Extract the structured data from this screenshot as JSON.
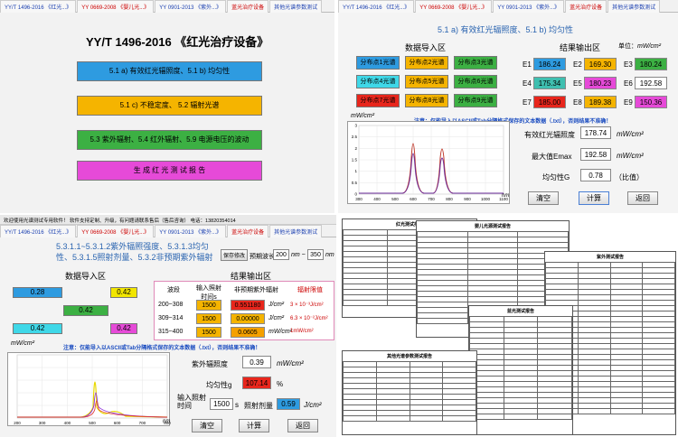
{
  "tabs": [
    "YY/T 1496-2016 《红光...》",
    "YY 0669-2008 《婴儿光...》",
    "YY 0901-2013 《紫外...》",
    "蓝光治疗设备",
    "其他光谱参数测试"
  ],
  "q1": {
    "title": "YY/T 1496-2016 《红光治疗设备》",
    "buttons": [
      "5.1 a) 有效红光辐照度、5.1 b) 均匀性",
      "5.1 c) 不稳定度、  5.2 辐射光谱",
      "5.3 紫外辐射、5.4 红外辐射、5.9 电源电压的波动",
      "生 成 红 光 测 试 报 告"
    ]
  },
  "q2": {
    "subtitle": "5.1 a) 有效红光辐照度、5.1 b) 均匀性",
    "import_title": "数据导入区",
    "output_title": "结果输出区",
    "unit_label": "单位：",
    "unit": "mW/cm²",
    "points": [
      "分布点1光谱",
      "分布点2光谱",
      "分布点3光谱",
      "分布点4光谱",
      "分布点5光谱",
      "分布点6光谱",
      "分布点7光谱",
      "分布点8光谱",
      "分布点9光谱"
    ],
    "e_labels": [
      "E1",
      "E2",
      "E3",
      "E4",
      "E5",
      "E6",
      "E7",
      "E8",
      "E9"
    ],
    "e_values": [
      "186.24",
      "169.30",
      "180.24",
      "175.34",
      "180.23",
      "192.58",
      "185.00",
      "189.38",
      "150.36"
    ],
    "note": "注意：仅能导入以ASCII或Tab分隔格式保存的文本数据（.txt），否则结果不准确！",
    "y_unit": "mW/cm²",
    "x_unit": "nm",
    "x_ticks": [
      "300",
      "400",
      "500",
      "600",
      "700",
      "800",
      "900",
      "1000",
      "1100"
    ],
    "y_ticks": [
      "0",
      "0.5",
      "1",
      "1.5",
      "2",
      "2.5",
      "3"
    ],
    "eff_label": "有效红光辐照度",
    "eff_value": "178.74",
    "emax_label": "最大值Emax",
    "emax_value": "192.58",
    "unif_label": "均匀性G",
    "unif_value": "0.78",
    "unif_unit": "（比值）",
    "buttons": [
      "清空",
      "计算",
      "返回"
    ]
  },
  "q3": {
    "top_bar": "欢迎使用光谱测试专用软件！      软件支持定制、升级，有问题请联系售后（售后咨询） 电话：13820354014",
    "subtitle": "5.3.1.1~5.3.1.2紫外辐照强度、5.3.1.3均匀性、5.3.1.5照射剂量、5.3.2非预期紫外辐射",
    "save_btn": "保存修改",
    "wave_label": "预期波长",
    "wave_from": "200",
    "wave_to": "350",
    "nm": "nm",
    "import_title": "数据导入区",
    "output_title": "结果输出区",
    "inputs": [
      "0.28",
      "0.42",
      "0.42",
      "0.42",
      "0.42"
    ],
    "unit": "mW/cm²",
    "table_headers": [
      "波段",
      "输入照射时间s",
      "非预期紫外辐射",
      "辐射限值"
    ],
    "rows": [
      {
        "band": "200~308",
        "time": "1500",
        "val": "0.551180",
        "unit": "J/cm²",
        "limit": "3 × 10⁻³J/cm²"
      },
      {
        "band": "309~314",
        "time": "1500",
        "val": "0.00000",
        "unit": "J/cm²",
        "limit": "6.3 × 10⁻²J/cm²"
      },
      {
        "band": "315~400",
        "time": "1500",
        "val": "0.0605",
        "unit": "mW/cm²",
        "limit": "1mW/cm²"
      }
    ],
    "note": "注意：仅能导入以ASCII或Tab分隔格式保存的文本数据（.txt），否则结果不准确！",
    "uv_label": "紫外辐照度",
    "uv_value": "0.39",
    "uv_unit": "mW/cm²",
    "unif_label": "均匀性g",
    "unif_value": "107.14",
    "unif_unit": "%",
    "time_label": "输入照射时间",
    "time_value": "1500",
    "time_unit": "s",
    "dose_label": "照射剂量",
    "dose_value": "0.59",
    "dose_unit": "J/cm²",
    "buttons": [
      "清空",
      "计算",
      "返回"
    ],
    "x_unit": "nm",
    "x_ticks": [
      "200",
      "300",
      "400",
      "500",
      "600",
      "700",
      "800"
    ]
  },
  "q4": {
    "doc1": "婴儿光源测试报告",
    "doc2": "其他光谱参数测试报告",
    "doc3": "蓝光测试报告",
    "doc4": "紫外测试报告",
    "doc5": "红光测试报告"
  },
  "colors": {
    "blue": "#2e9be0",
    "orange": "#f5b400",
    "green": "#3cb043",
    "teal": "#3fbfb0",
    "magenta": "#e64ad8",
    "red": "#e8261c",
    "yellow": "#f2e600"
  }
}
